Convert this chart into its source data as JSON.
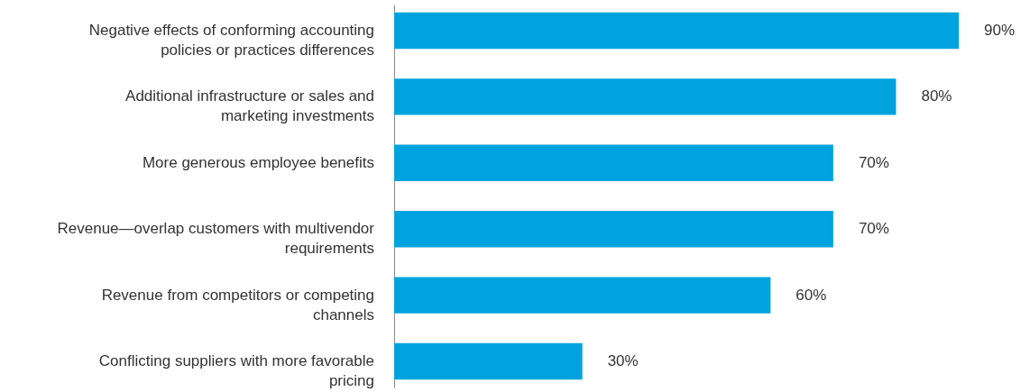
{
  "chart_data": {
    "type": "bar",
    "orientation": "horizontal",
    "categories": [
      "Negative effects of conforming accounting policies or practices differences",
      "Additional infrastructure or sales and marketing investments",
      "More generous employee benefits",
      "Revenue—overlap customers with multivendor requirements",
      "Revenue from competitors or competing channels",
      "Conflicting suppliers with more favorable pricing"
    ],
    "values": [
      90,
      80,
      70,
      70,
      60,
      30
    ],
    "value_labels": [
      "90%",
      "80%",
      "70%",
      "70%",
      "60%",
      "30%"
    ],
    "color": "#00a3dd"
  }
}
